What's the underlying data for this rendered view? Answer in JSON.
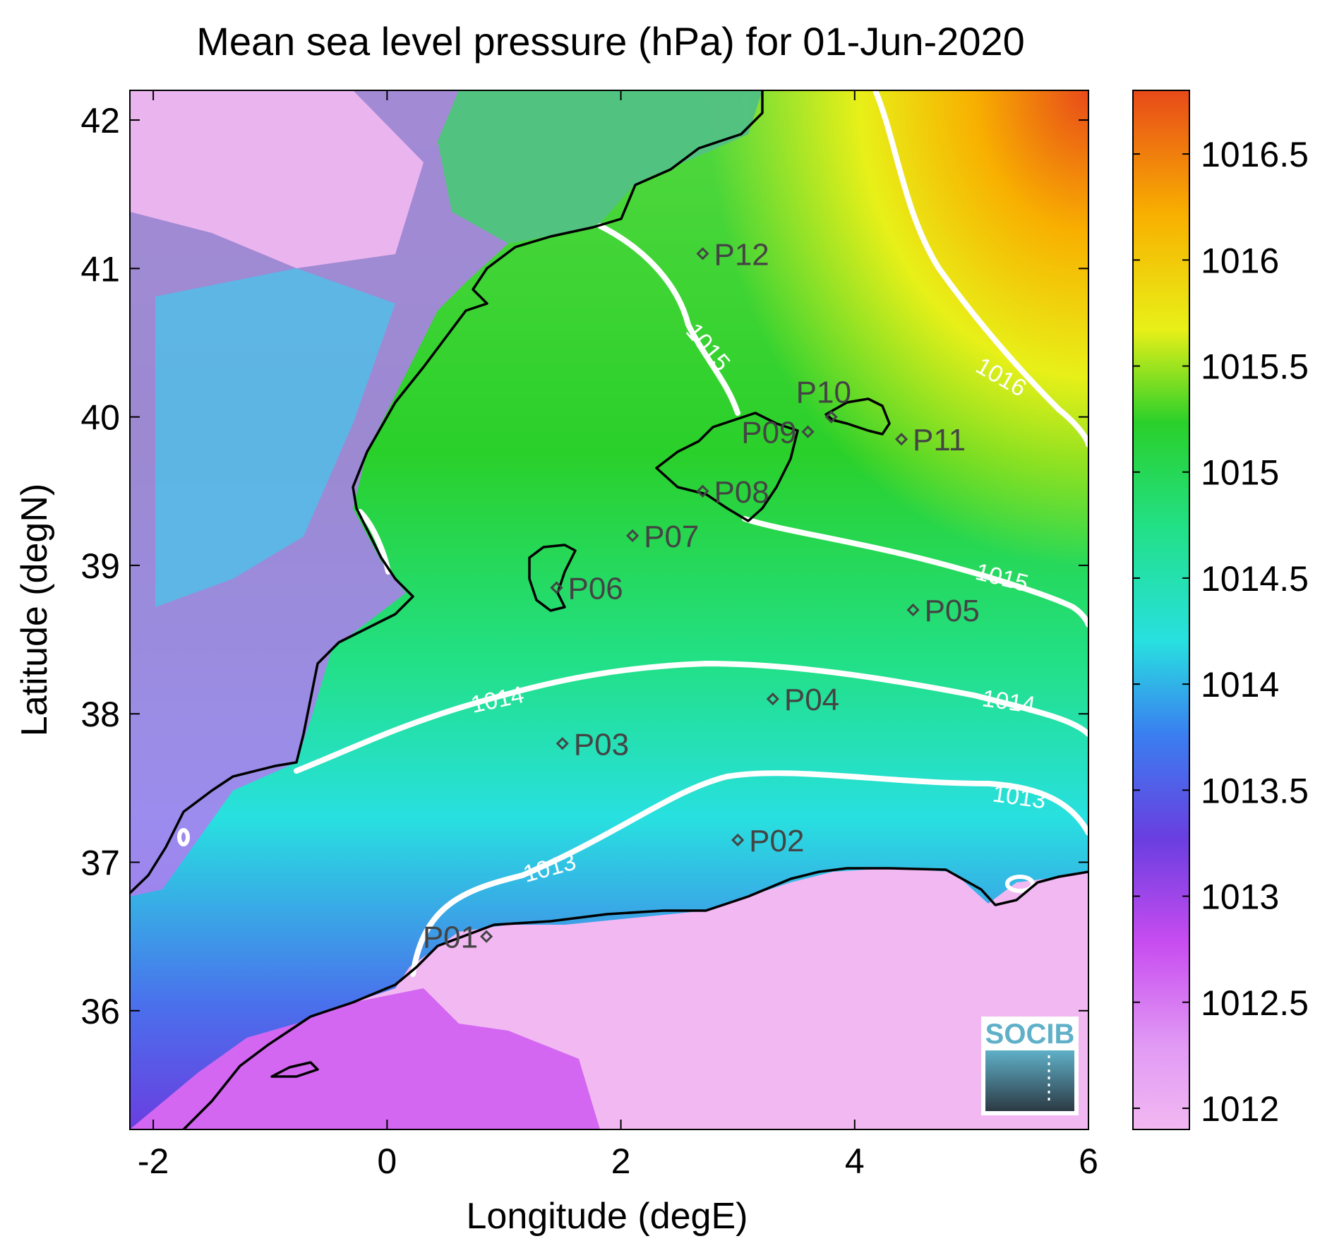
{
  "title": "Mean sea level pressure (hPa) for 01-Jun-2020",
  "x_axis": {
    "label": "Longitude (degE)",
    "range": [
      -2.2,
      6
    ],
    "ticks": [
      -2,
      0,
      2,
      4,
      6
    ]
  },
  "y_axis": {
    "label": "Latitude (degN)",
    "range": [
      35.2,
      42.2
    ],
    "ticks": [
      36,
      37,
      38,
      39,
      40,
      41,
      42
    ]
  },
  "colorbar": {
    "range": [
      1011.9,
      1016.8
    ],
    "ticks": [
      "1012",
      "1012.5",
      "1013",
      "1013.5",
      "1014",
      "1014.5",
      "1015",
      "1015.5",
      "1016",
      "1016.5"
    ],
    "colors": [
      "#f2b8f2",
      "#c84cf0",
      "#6a3ee0",
      "#3a7ef0",
      "#28e0e0",
      "#22e086",
      "#2ad02a",
      "#e8f018",
      "#f8b000",
      "#e84a1a"
    ]
  },
  "contour_labels": [
    "1013",
    "1013",
    "1014",
    "1014",
    "1015",
    "1015",
    "1016"
  ],
  "stations": [
    {
      "name": "P01",
      "lon": 0.85,
      "lat": 36.5
    },
    {
      "name": "P02",
      "lon": 3.0,
      "lat": 37.15
    },
    {
      "name": "P03",
      "lon": 1.5,
      "lat": 37.8
    },
    {
      "name": "P04",
      "lon": 3.3,
      "lat": 38.1
    },
    {
      "name": "P05",
      "lon": 4.5,
      "lat": 38.7
    },
    {
      "name": "P06",
      "lon": 1.45,
      "lat": 38.85
    },
    {
      "name": "P07",
      "lon": 2.1,
      "lat": 39.2
    },
    {
      "name": "P08",
      "lon": 2.7,
      "lat": 39.5
    },
    {
      "name": "P09",
      "lon": 3.6,
      "lat": 39.9
    },
    {
      "name": "P10",
      "lon": 3.8,
      "lat": 40.0
    },
    {
      "name": "P11",
      "lon": 4.4,
      "lat": 39.85
    },
    {
      "name": "P12",
      "lon": 2.7,
      "lat": 41.1
    }
  ],
  "logo": {
    "text": "SOCIB"
  }
}
